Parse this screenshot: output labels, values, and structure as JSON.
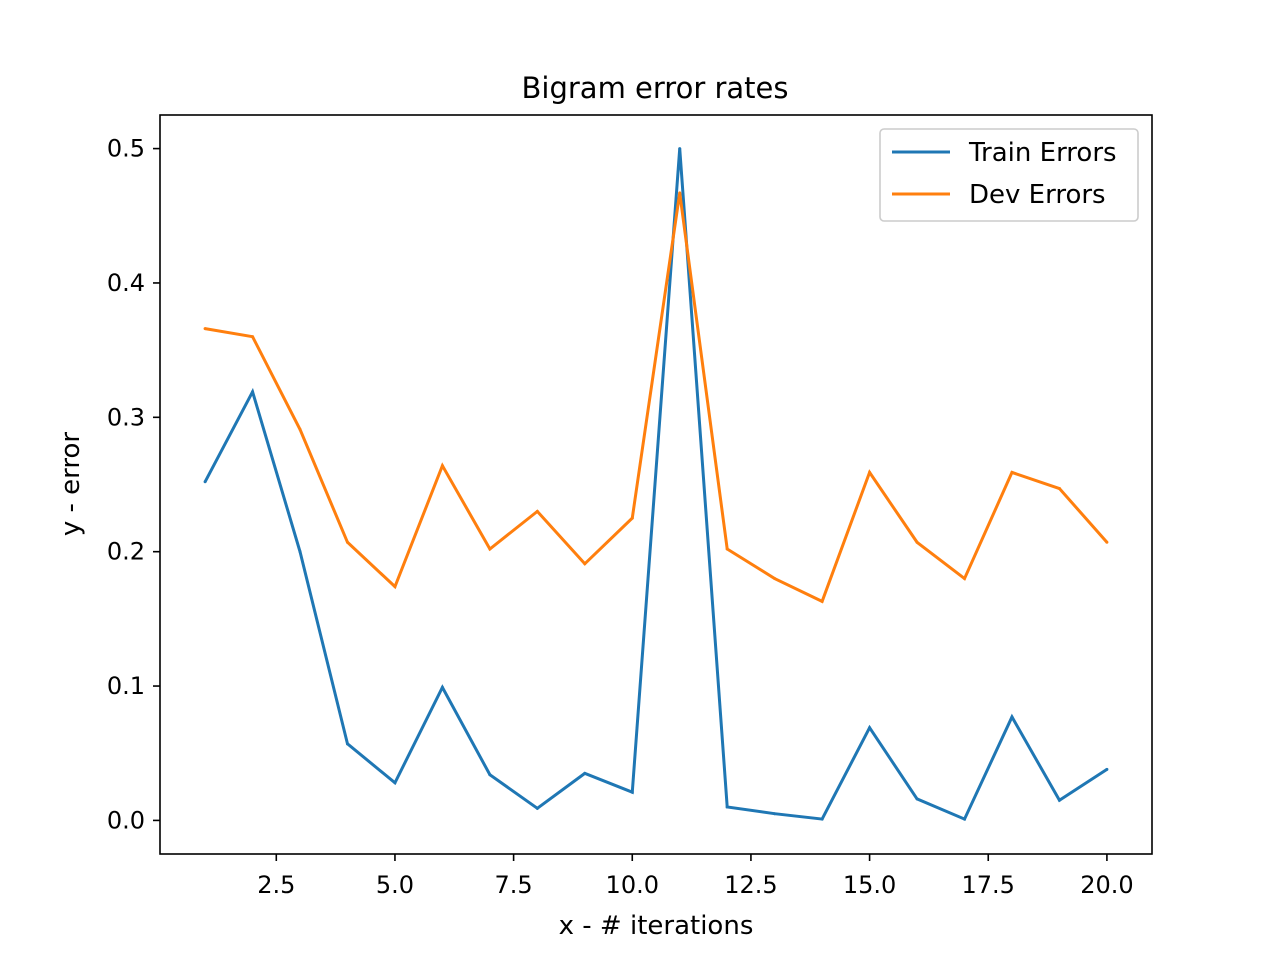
{
  "chart_data": {
    "type": "line",
    "title": "Bigram error rates",
    "xlabel": "x - # iterations",
    "ylabel": "y - error",
    "xlim": [
      0.05,
      20.95
    ],
    "ylim": [
      -0.025,
      0.525
    ],
    "x": [
      1,
      2,
      3,
      4,
      5,
      6,
      7,
      8,
      9,
      10,
      11,
      12,
      13,
      14,
      15,
      16,
      17,
      18,
      19,
      20
    ],
    "series": [
      {
        "name": "Train Errors",
        "color": "#1f77b4",
        "values": [
          0.252,
          0.319,
          0.2,
          0.057,
          0.028,
          0.099,
          0.034,
          0.009,
          0.035,
          0.021,
          0.5,
          0.01,
          0.005,
          0.001,
          0.069,
          0.016,
          0.001,
          0.077,
          0.015,
          0.038
        ]
      },
      {
        "name": "Dev Errors",
        "color": "#ff7f0e",
        "values": [
          0.366,
          0.36,
          0.291,
          0.207,
          0.174,
          0.264,
          0.202,
          0.23,
          0.191,
          0.225,
          0.467,
          0.202,
          0.18,
          0.163,
          0.259,
          0.207,
          0.18,
          0.259,
          0.247,
          0.207
        ]
      }
    ],
    "xticks": [
      2.5,
      5.0,
      7.5,
      10.0,
      12.5,
      15.0,
      17.5,
      20.0
    ],
    "xtick_labels": [
      "2.5",
      "5.0",
      "7.5",
      "10.0",
      "12.5",
      "15.0",
      "17.5",
      "20.0"
    ],
    "yticks": [
      0.0,
      0.1,
      0.2,
      0.3,
      0.4,
      0.5
    ],
    "ytick_labels": [
      "0.0",
      "0.1",
      "0.2",
      "0.3",
      "0.4",
      "0.5"
    ],
    "grid": false,
    "legend_position": "top-right"
  }
}
